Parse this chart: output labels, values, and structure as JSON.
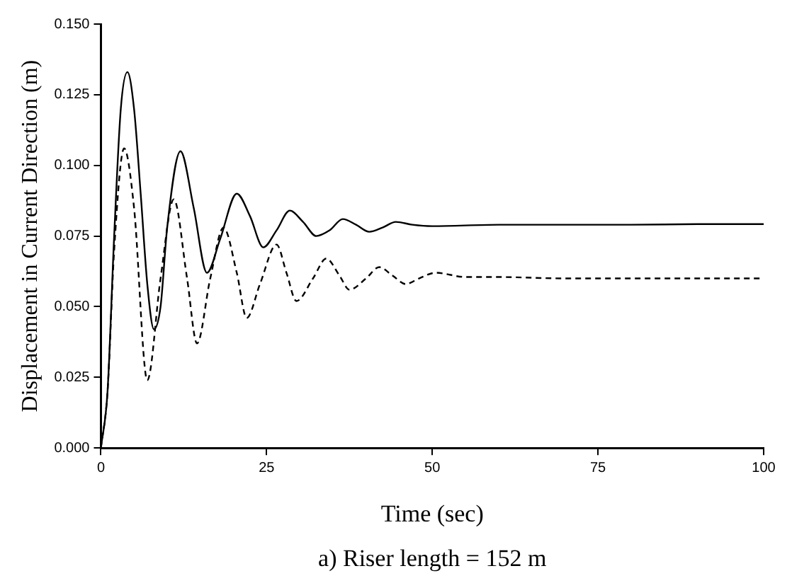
{
  "chart_data": {
    "type": "line",
    "xlabel": "Time (sec)",
    "ylabel": "Displacement in Current Direction (m)",
    "annotations": [
      "a) Riser length = 152 m"
    ],
    "xlim": [
      0,
      100
    ],
    "xticks": [
      0,
      25,
      50,
      75,
      100
    ],
    "ylim": [
      0,
      0.15
    ],
    "yticks": [
      {
        "value": 0,
        "label": "0.000"
      },
      {
        "value": 0.025,
        "label": "0.025"
      },
      {
        "value": 0.05,
        "label": "0.050"
      },
      {
        "value": 0.075,
        "label": "0.075"
      },
      {
        "value": 0.1,
        "label": "0.100"
      },
      {
        "value": 0.125,
        "label": "0.125"
      },
      {
        "value": 0.15,
        "label": "0.150"
      }
    ],
    "grid": false,
    "legend": false,
    "marker": "none",
    "series": [
      {
        "color": "#000000",
        "line_style": "solid",
        "x": [
          0,
          1,
          2,
          3,
          4,
          5,
          6,
          7,
          8,
          9,
          10,
          12,
          14,
          16,
          18,
          20.5,
          22.5,
          24.5,
          26.5,
          28.5,
          30.5,
          32.5,
          34.5,
          36.5,
          38.5,
          40.5,
          42.5,
          44.5,
          47,
          50,
          60,
          70,
          80,
          90,
          100
        ],
        "values": [
          0,
          0.02,
          0.075,
          0.12,
          0.133,
          0.12,
          0.09,
          0.058,
          0.042,
          0.05,
          0.078,
          0.105,
          0.085,
          0.062,
          0.074,
          0.09,
          0.082,
          0.071,
          0.077,
          0.084,
          0.08,
          0.075,
          0.077,
          0.081,
          0.079,
          0.0765,
          0.078,
          0.08,
          0.079,
          0.0785,
          0.079,
          0.079,
          0.079,
          0.0792,
          0.0792
        ]
      },
      {
        "color": "#000000",
        "line_style": "dashed",
        "x": [
          0,
          1,
          2,
          3.5,
          5,
          7,
          9,
          11,
          13,
          14.5,
          16.5,
          18.5,
          20.5,
          22,
          24,
          26.5,
          28,
          29.5,
          32,
          34,
          36,
          37.5,
          40,
          42,
          44,
          46,
          48,
          50.5,
          55,
          60,
          70,
          80,
          90,
          100
        ],
        "values": [
          0,
          0.02,
          0.07,
          0.106,
          0.085,
          0.024,
          0.06,
          0.088,
          0.06,
          0.037,
          0.06,
          0.078,
          0.062,
          0.046,
          0.058,
          0.072,
          0.062,
          0.052,
          0.06,
          0.067,
          0.061,
          0.056,
          0.06,
          0.064,
          0.061,
          0.058,
          0.06,
          0.062,
          0.0605,
          0.0605,
          0.06,
          0.06,
          0.06,
          0.06
        ]
      }
    ]
  }
}
